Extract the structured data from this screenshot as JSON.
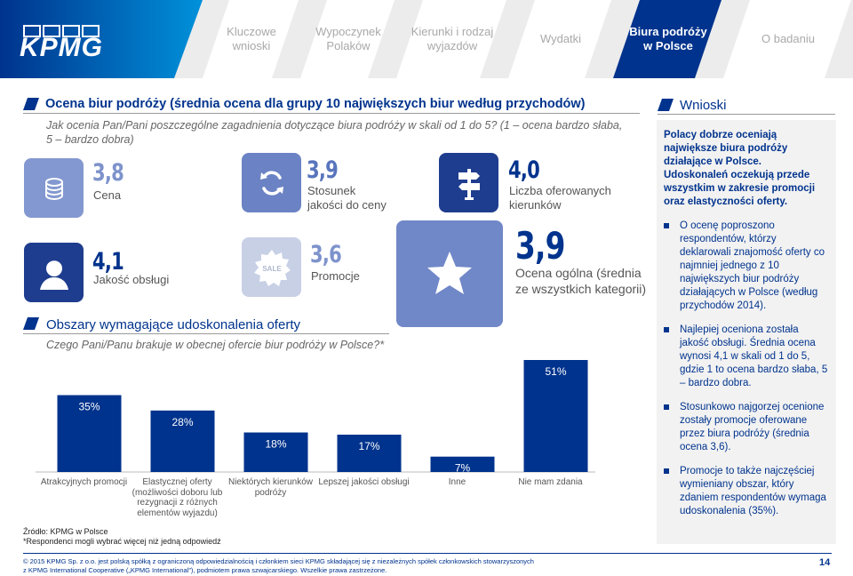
{
  "brand": {
    "logo_text": "KPMG",
    "primary_color": "#00338d",
    "accent_color": "#0091da",
    "tile_color": "#6b83c4"
  },
  "nav": {
    "tabs": [
      {
        "label": "Kluczowe\nwnioski",
        "active": false
      },
      {
        "label": "Wypoczynek\nPolaków",
        "active": false
      },
      {
        "label": "Kierunki i rodzaj\nwyjazdów",
        "active": false
      },
      {
        "label": "Wydatki",
        "active": false
      },
      {
        "label": "Biura podróży\nw Polsce",
        "active": true
      },
      {
        "label": "O badaniu",
        "active": false
      }
    ]
  },
  "ratings": {
    "title": "Ocena biur podróży (średnia ocena dla grupy 10 największych biur według przychodów)",
    "question": "Jak ocenia Pan/Pani poszczególne zagadnienia dotyczące biura podróży w skali od 1 do 5? (1 – ocena bardzo słaba, 5 – bardzo dobra)",
    "items": [
      {
        "score": "3,8",
        "label": "Cena",
        "icon": "coins-icon"
      },
      {
        "score": "3,9",
        "label": "Stosunek\njakości do ceny",
        "icon": "refresh-arrows-icon"
      },
      {
        "score": "4,0",
        "label": "Liczba oferowanych\nkierunków",
        "icon": "signpost-icon"
      },
      {
        "score": "4,1",
        "label": "Jakość obsługi",
        "icon": "headset-agent-icon"
      },
      {
        "score": "3,6",
        "label": "Promocje",
        "icon": "sale-badge-icon",
        "badge_text": "SALE"
      },
      {
        "score": "3,9",
        "label": "Ocena ogólna (średnia\nze wszystkich kategorii)",
        "icon": "star-icon"
      }
    ]
  },
  "improvements": {
    "title": "Obszary wymagające udoskonalenia oferty",
    "question": "Czego Pani/Panu brakuje w obecnej ofercie biur podróży w Polsce?*"
  },
  "chart_data": {
    "type": "bar",
    "categories": [
      "Atrakcyjnych promocji",
      "Elastycznej oferty\n(możliwości doboru lub\nrezygnacji z różnych\nelementów wyjazdu)",
      "Niektórych kierunków\npodróży",
      "Lepszej jakości obsługi",
      "Inne",
      "Nie mam zdania"
    ],
    "values": [
      35,
      28,
      18,
      17,
      7,
      51
    ],
    "value_labels": [
      "35%",
      "28%",
      "18%",
      "17%",
      "7%",
      "51%"
    ],
    "bar_color": "#00338d",
    "ylim": [
      0,
      51
    ],
    "grid": false,
    "legend": "none"
  },
  "conclusions": {
    "title": "Wnioski",
    "intro": "Polacy dobrze oceniają\nnajwiększe biura podróży\ndziałające w Polsce.\nUdoskonaleń oczekują przede\nwszystkim w zakresie promocji\noraz elastyczności oferty.",
    "bullets": [
      "O ocenę poproszono respondentów, którzy deklarowali znajomość oferty co najmniej jednego z 10 największych biur podróży działających w Polsce (według przychodów 2014).",
      "Najlepiej oceniona została jakość obsługi. Średnia ocena wynosi 4,1 w skali od 1 do 5, gdzie 1 to ocena bardzo słaba, 5 – bardzo dobra.",
      "Stosunkowo najgorzej ocenione zostały promocje oferowane przez biura podróży (średnia ocena 3,6).",
      "Promocje to także najczęściej wymieniany obszar, który zdaniem respondentów wymaga udoskonalenia (35%)."
    ]
  },
  "footer": {
    "source": "Źródło: KPMG w Polsce",
    "note": "*Respondenci mogli wybrać więcej niż jedną odpowiedź",
    "copyright_line1": "© 2015 KPMG Sp. z o.o. jest polską spółką z ograniczoną odpowiedzialnością i członkiem sieci KPMG składającej się z niezależnych spółek członkowskich stowarzyszonych",
    "copyright_line2": "z KPMG International Cooperative („KPMG International”), podmiotem prawa szwajcarskiego. Wszelkie prawa zastrzeżone.",
    "page_number": "14"
  }
}
